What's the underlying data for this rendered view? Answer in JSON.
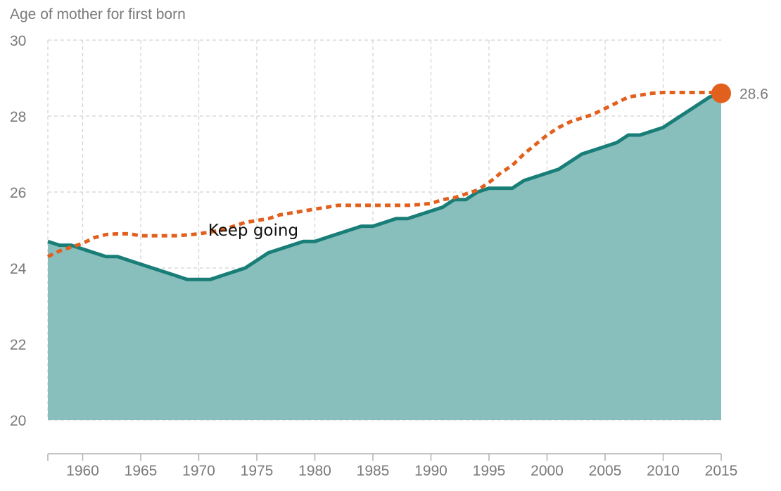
{
  "chart_data": {
    "type": "area",
    "ylabel": "Age of mother for first born",
    "xlabel": "",
    "xlim": [
      1957,
      2015
    ],
    "ylim": [
      20,
      30
    ],
    "x_ticks": [
      1960,
      1965,
      1970,
      1975,
      1980,
      1985,
      1990,
      1995,
      2000,
      2005,
      2010,
      2015
    ],
    "y_ticks": [
      20,
      22,
      24,
      26,
      28,
      30
    ],
    "grid": true,
    "series": [
      {
        "style": "solid-area",
        "color": "#1a7e78",
        "fill": "#88bfbc",
        "x": [
          1957,
          1958,
          1959,
          1960,
          1961,
          1962,
          1963,
          1964,
          1965,
          1966,
          1967,
          1968,
          1969,
          1970,
          1971,
          1972,
          1973,
          1974,
          1975,
          1976,
          1977,
          1978,
          1979,
          1980,
          1981,
          1982,
          1983,
          1984,
          1985,
          1986,
          1987,
          1988,
          1989,
          1990,
          1991,
          1992,
          1993,
          1994,
          1995,
          1996,
          1997,
          1998,
          1999,
          2000,
          2001,
          2002,
          2003,
          2004,
          2005,
          2006,
          2007,
          2008,
          2009,
          2010,
          2011,
          2012,
          2013,
          2014,
          2015
        ],
        "values": [
          24.7,
          24.6,
          24.6,
          24.5,
          24.4,
          24.3,
          24.3,
          24.2,
          24.1,
          24.0,
          23.9,
          23.8,
          23.7,
          23.7,
          23.7,
          23.8,
          23.9,
          24.0,
          24.2,
          24.4,
          24.5,
          24.6,
          24.7,
          24.7,
          24.8,
          24.9,
          25.0,
          25.1,
          25.1,
          25.2,
          25.3,
          25.3,
          25.4,
          25.5,
          25.6,
          25.8,
          25.8,
          26.0,
          26.1,
          26.1,
          26.1,
          26.3,
          26.4,
          26.5,
          26.6,
          26.8,
          27.0,
          27.1,
          27.2,
          27.3,
          27.5,
          27.5,
          27.6,
          27.7,
          27.9,
          28.1,
          28.3,
          28.5,
          28.6
        ]
      },
      {
        "style": "dotted",
        "color": "#e2601e",
        "x": [
          1957,
          1958,
          1959,
          1960,
          1961,
          1962,
          1963,
          1964,
          1965,
          1966,
          1967,
          1968,
          1969,
          1970,
          1971,
          1972,
          1973,
          1974,
          1975,
          1976,
          1977,
          1978,
          1979,
          1980,
          1981,
          1982,
          1983,
          1984,
          1985,
          1986,
          1987,
          1988,
          1989,
          1990,
          1991,
          1992,
          1993,
          1994,
          1995,
          1996,
          1997,
          1998,
          1999,
          2000,
          2001,
          2002,
          2003,
          2004,
          2005,
          2006,
          2007,
          2008,
          2009,
          2010,
          2011,
          2012,
          2013,
          2014,
          2015
        ],
        "values": [
          24.3,
          24.45,
          24.55,
          24.65,
          24.8,
          24.88,
          24.9,
          24.9,
          24.85,
          24.85,
          24.85,
          24.85,
          24.87,
          24.9,
          24.95,
          25.0,
          25.1,
          25.2,
          25.25,
          25.3,
          25.4,
          25.45,
          25.5,
          25.55,
          25.6,
          25.65,
          25.65,
          25.65,
          25.65,
          25.65,
          25.65,
          25.65,
          25.67,
          25.7,
          25.8,
          25.85,
          25.95,
          26.05,
          26.25,
          26.5,
          26.7,
          27.0,
          27.25,
          27.5,
          27.7,
          27.85,
          27.95,
          28.05,
          28.2,
          28.35,
          28.5,
          28.55,
          28.6,
          28.62,
          28.62,
          28.62,
          28.62,
          28.62,
          28.62
        ]
      }
    ],
    "end_point": {
      "x": 2015,
      "y": 28.6,
      "label": "28.6",
      "color": "#e2601e"
    },
    "annotation": {
      "text": "Keep going",
      "x": 1970.8,
      "y": 25.0
    }
  }
}
